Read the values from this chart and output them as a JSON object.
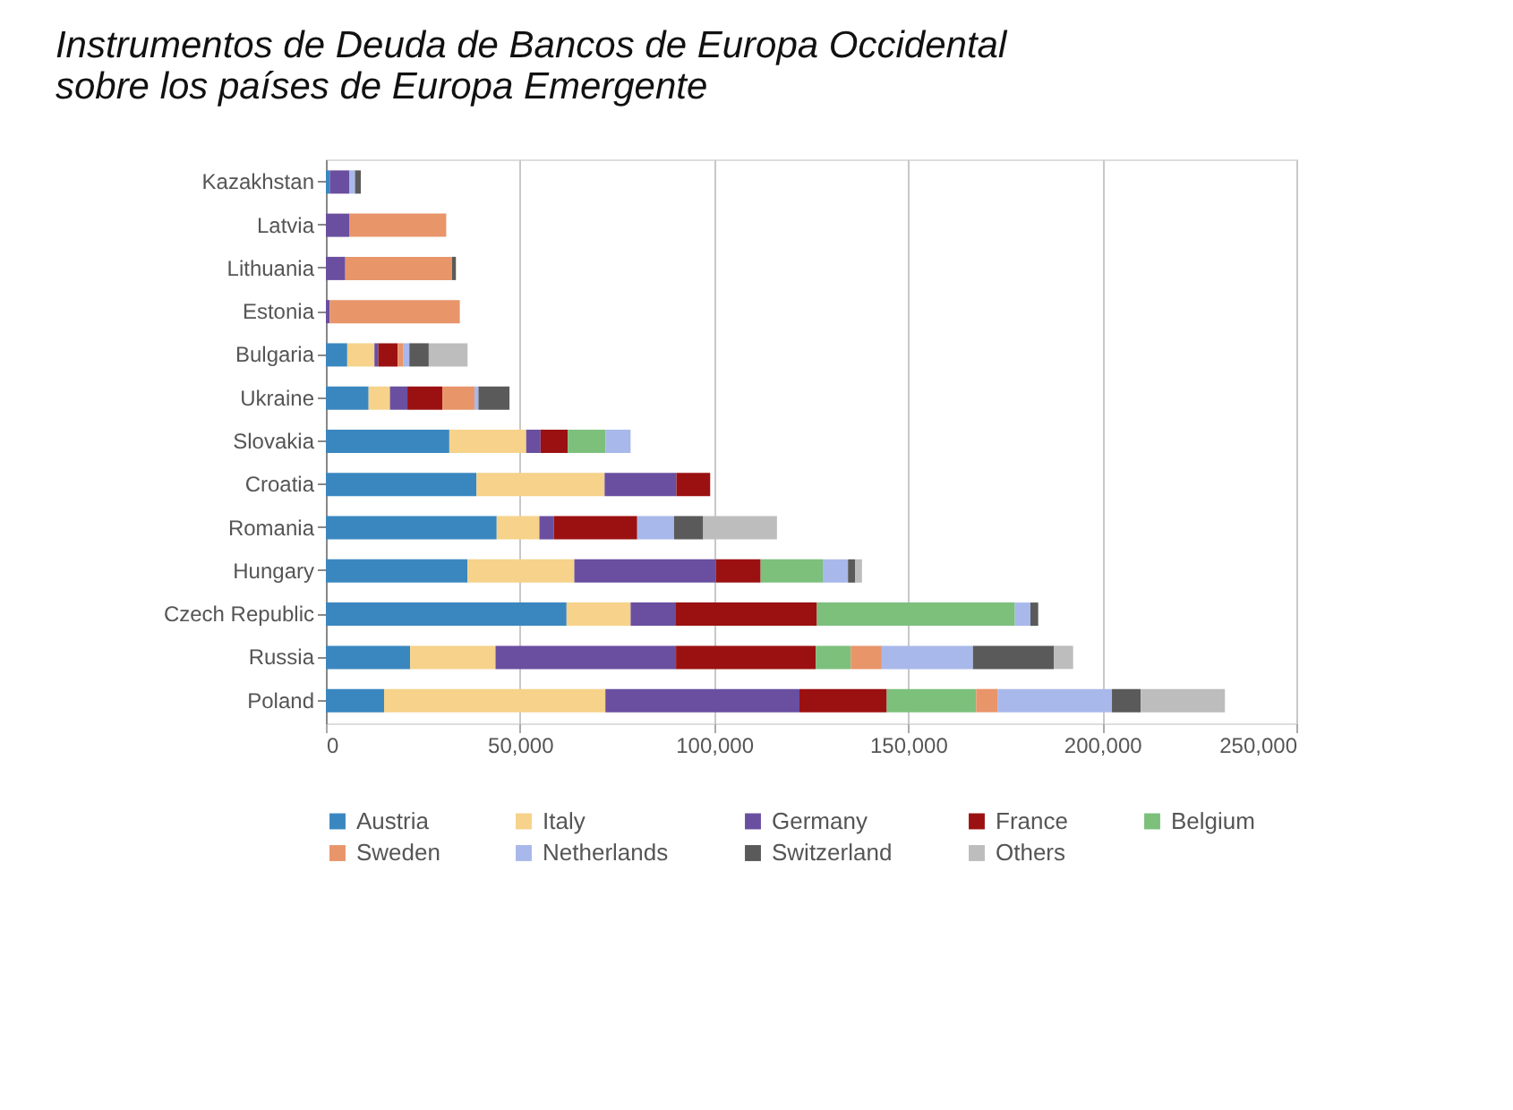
{
  "chart_data": {
    "type": "bar",
    "orientation": "horizontal",
    "stacked": true,
    "title": "Instrumentos de Deuda de Bancos de Europa Occidental\nsobre los países de Europa Emergente",
    "categories": [
      "Kazakhstan",
      "Latvia",
      "Lithuania",
      "Estonia",
      "Bulgaria",
      "Ukraine",
      "Slovakia",
      "Croatia",
      "Romania",
      "Hungary",
      "Czech Republic",
      "Russia",
      "Poland"
    ],
    "series": [
      {
        "name": "Austria",
        "color": "#3a87c0",
        "values": [
          1000,
          null,
          null,
          null,
          5500,
          11000,
          31800,
          38800,
          44000,
          36500,
          62000,
          21700,
          15000
        ]
      },
      {
        "name": "Italy",
        "color": "#f6d28a",
        "values": [
          null,
          null,
          null,
          null,
          7000,
          5500,
          19800,
          33000,
          11000,
          27500,
          16500,
          22000,
          57000
        ]
      },
      {
        "name": "Germany",
        "color": "#6a4fa0",
        "values": [
          5000,
          6000,
          5000,
          1000,
          1000,
          4500,
          3700,
          18500,
          3700,
          36500,
          11500,
          46500,
          50000
        ]
      },
      {
        "name": "France",
        "color": "#9b1111",
        "values": [
          null,
          null,
          null,
          null,
          5000,
          9000,
          7000,
          8700,
          21500,
          11500,
          36500,
          36000,
          22500
        ]
      },
      {
        "name": "Belgium",
        "color": "#7cc07c",
        "values": [
          null,
          null,
          null,
          null,
          null,
          null,
          9700,
          null,
          null,
          16000,
          51000,
          9000,
          23000
        ]
      },
      {
        "name": "Sweden",
        "color": "#e8956a",
        "values": [
          null,
          25000,
          27500,
          33500,
          1500,
          8300,
          null,
          null,
          null,
          null,
          null,
          8000,
          5500
        ]
      },
      {
        "name": "Netherlands",
        "color": "#a9b8ea",
        "values": [
          1500,
          null,
          null,
          null,
          1500,
          1000,
          6500,
          null,
          9500,
          6500,
          4000,
          23500,
          29500
        ]
      },
      {
        "name": "Switzerland",
        "color": "#5a5a5a",
        "values": [
          1500,
          null,
          1000,
          null,
          5000,
          8000,
          null,
          null,
          7500,
          1800,
          2000,
          20800,
          7400
        ]
      },
      {
        "name": "Others",
        "color": "#bdbdbd",
        "values": [
          null,
          null,
          null,
          null,
          10000,
          null,
          null,
          null,
          19000,
          1800,
          null,
          5000,
          21700
        ]
      }
    ],
    "xlim": [
      0,
      250000
    ],
    "xticks": [
      {
        "value": 0,
        "label": "0"
      },
      {
        "value": 50000,
        "label": "50,000"
      },
      {
        "value": 100000,
        "label": "100,000"
      },
      {
        "value": 150000,
        "label": "150,000"
      },
      {
        "value": 200000,
        "label": "200,000"
      },
      {
        "value": 250000,
        "label": "250,000"
      }
    ],
    "grid": "x",
    "legend": "bottom"
  }
}
